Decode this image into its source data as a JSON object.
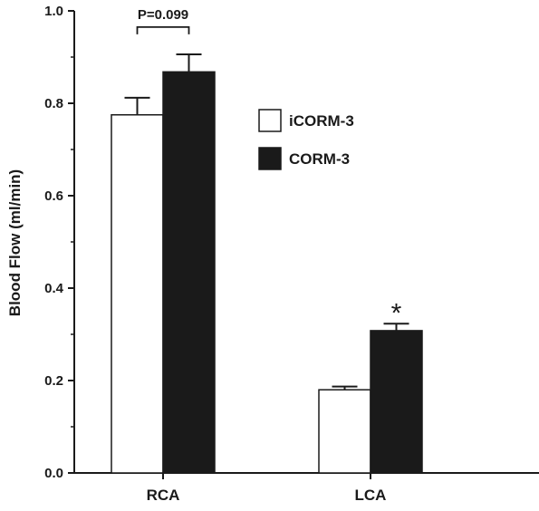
{
  "chart_data": {
    "type": "bar",
    "title": "",
    "ylabel": "Blood Flow (ml/min)",
    "xlabel": "",
    "ylim": [
      0,
      1.0
    ],
    "yticks": [
      "0.0",
      "0.2",
      "0.4",
      "0.6",
      "0.8",
      "1.0"
    ],
    "categories": [
      "RCA",
      "LCA"
    ],
    "series": [
      {
        "name": "iCORM-3",
        "values": [
          0.775,
          0.18
        ],
        "errors": [
          0.037,
          0.007
        ],
        "fill": "#ffffff"
      },
      {
        "name": "CORM-3",
        "values": [
          0.868,
          0.308
        ],
        "errors": [
          0.038,
          0.015
        ],
        "fill": "#1a1a1a"
      }
    ],
    "annotations": {
      "bracket_label": "P=0.099",
      "significance_mark": "*"
    },
    "legend_position": "top-right",
    "grid": false
  }
}
